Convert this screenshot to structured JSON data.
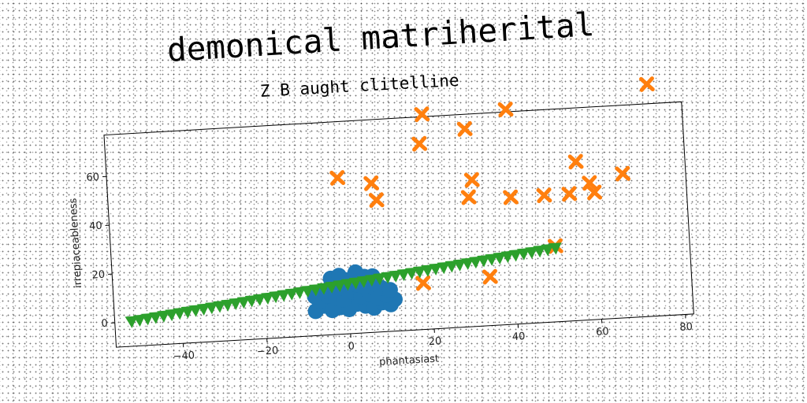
{
  "title": "demonical matriherital",
  "chart_data": {
    "type": "scatter",
    "title": "Z B aught clitelline",
    "xlabel": "phantasiast",
    "ylabel": "irrepiaceableness",
    "xlim": [
      -56,
      82
    ],
    "ylim": [
      -10,
      77
    ],
    "xticks": [
      -40,
      -20,
      0,
      20,
      40,
      60,
      80
    ],
    "yticks": [
      0,
      20,
      40,
      60
    ],
    "grid": false,
    "legend": "none",
    "series": [
      {
        "marker": "circle",
        "color": "#1f77b4",
        "points": [
          [
            -8,
            0
          ],
          [
            -6,
            2
          ],
          [
            -4,
            0
          ],
          [
            -2,
            1
          ],
          [
            0,
            0
          ],
          [
            2,
            2
          ],
          [
            4,
            1
          ],
          [
            6,
            0
          ],
          [
            8,
            2
          ],
          [
            10,
            1
          ],
          [
            11,
            3
          ],
          [
            -7,
            4
          ],
          [
            -5,
            6
          ],
          [
            -3,
            5
          ],
          [
            -1,
            4
          ],
          [
            1,
            7
          ],
          [
            3,
            5
          ],
          [
            5,
            6
          ],
          [
            7,
            4
          ],
          [
            9,
            5
          ],
          [
            -6,
            8
          ],
          [
            -4,
            10
          ],
          [
            -2,
            9
          ],
          [
            0,
            11
          ],
          [
            2,
            10
          ],
          [
            4,
            9
          ],
          [
            6,
            10
          ],
          [
            8,
            8
          ],
          [
            -4,
            13
          ],
          [
            -2,
            14
          ],
          [
            0,
            12
          ],
          [
            2,
            15
          ],
          [
            4,
            13
          ],
          [
            6,
            13
          ],
          [
            -8,
            6
          ],
          [
            10,
            7
          ]
        ]
      },
      {
        "marker": "x",
        "color": "#ff7f0e",
        "points": [
          [
            -1,
            54
          ],
          [
            7,
            51
          ],
          [
            8,
            44
          ],
          [
            18,
            9
          ],
          [
            19,
            66
          ],
          [
            20,
            78
          ],
          [
            30,
            71
          ],
          [
            30,
            43
          ],
          [
            31,
            50
          ],
          [
            34,
            10
          ],
          [
            40,
            78
          ],
          [
            40,
            42
          ],
          [
            48,
            42
          ],
          [
            50,
            21
          ],
          [
            54,
            42
          ],
          [
            56,
            55
          ],
          [
            59,
            46
          ],
          [
            60,
            42
          ],
          [
            67,
            49
          ],
          [
            74,
            85
          ]
        ]
      },
      {
        "marker": "triangle-down",
        "color": "#2ca02c",
        "line": {
          "x0": -52,
          "y0": 0,
          "x1": 50,
          "y1": 20,
          "count": 54
        }
      }
    ]
  }
}
